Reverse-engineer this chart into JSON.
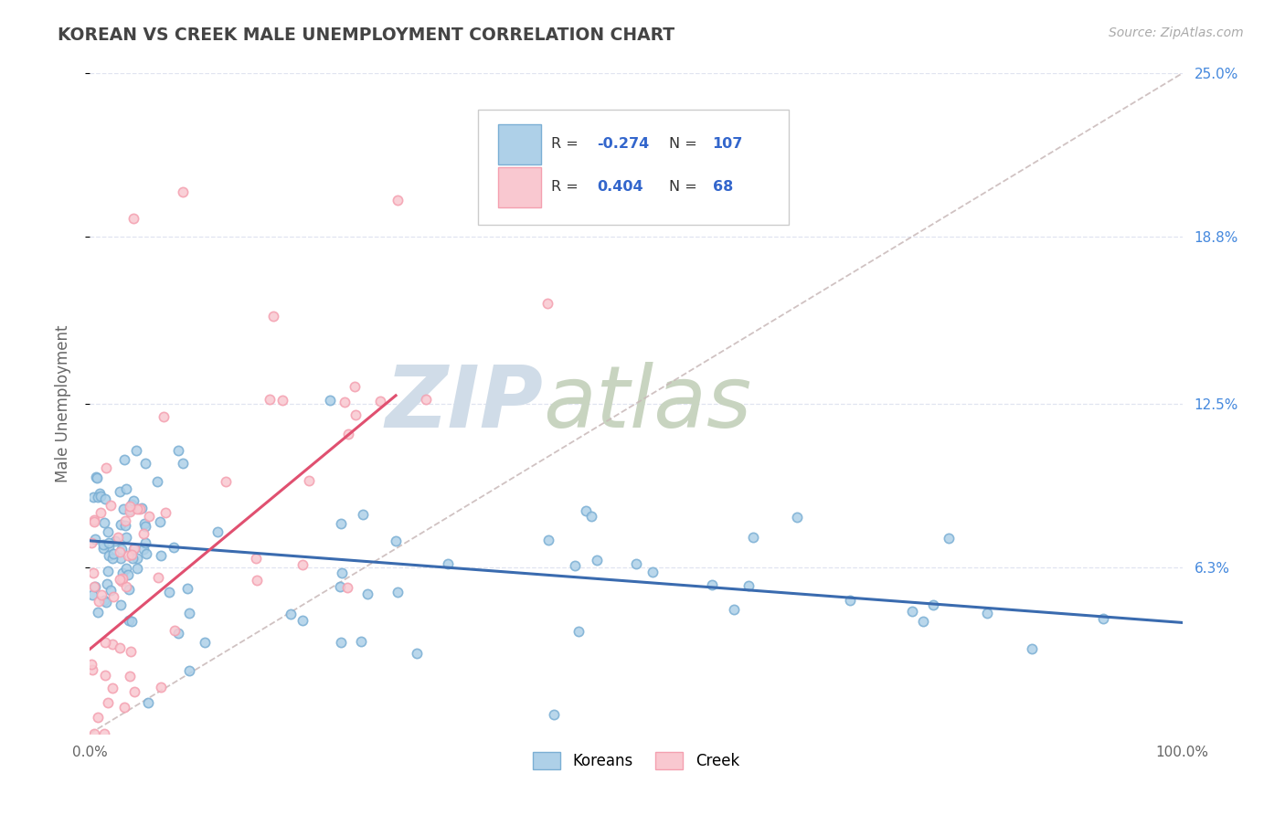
{
  "title": "KOREAN VS CREEK MALE UNEMPLOYMENT CORRELATION CHART",
  "source_text": "Source: ZipAtlas.com",
  "ylabel": "Male Unemployment",
  "xlim": [
    0,
    1.0
  ],
  "ylim": [
    0,
    0.25
  ],
  "ytick_labels_right": [
    "6.3%",
    "12.5%",
    "18.8%",
    "25.0%"
  ],
  "ytick_vals_right": [
    0.063,
    0.125,
    0.188,
    0.25
  ],
  "blue_edge": "#7BAFD4",
  "blue_face": "#AED0E8",
  "pink_edge": "#F4A0B0",
  "pink_face": "#F9C8D0",
  "trend_blue": "#3A6BAF",
  "trend_pink": "#E05070",
  "ref_line_color": "#C8B8B8",
  "title_color": "#444444",
  "axis_label_color": "#666666",
  "right_tick_color": "#4488DD",
  "watermark_zip_color": "#D0DCE8",
  "watermark_atlas_color": "#C8D4C0",
  "grid_color": "#E0E4F0",
  "legend_text_color": "#333333",
  "legend_value_color": "#3366CC",
  "blue_trend_start_y": 0.073,
  "blue_trend_end_y": 0.042,
  "pink_trend_start_y": 0.032,
  "pink_trend_end_y": 0.128,
  "pink_trend_end_x": 0.28
}
